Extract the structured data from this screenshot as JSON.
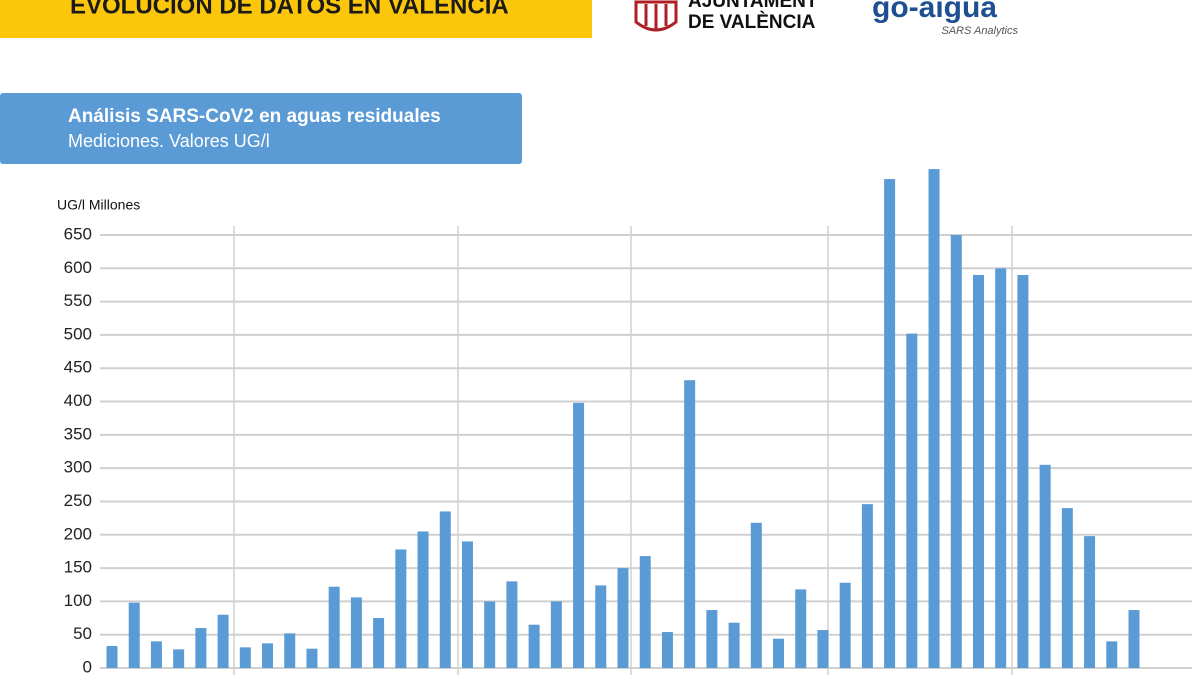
{
  "header": {
    "title": "EVOLUCIÓN DE DATOS EN VALÈNCIA",
    "city_hall": [
      "AJUNTAMENT",
      "DE VALÈNCIA"
    ],
    "brand": "go-aigua",
    "brand_tagline": "SARS Analytics"
  },
  "chart_data": {
    "type": "bar",
    "title": "Análisis SARS-CoV2 en aguas residuales",
    "subtitle": "Mediciones. Valores UG/l",
    "y_label": "UG/l Millones",
    "values": [
      33,
      98,
      40,
      28,
      60,
      80,
      31,
      37,
      52,
      29,
      122,
      106,
      75,
      178,
      205,
      235,
      190,
      100,
      130,
      65,
      100,
      398,
      124,
      150,
      168,
      54,
      432,
      87,
      68,
      218,
      44,
      118,
      57,
      128,
      246,
      734,
      502,
      749,
      650,
      590,
      600,
      590,
      305,
      240,
      198,
      40,
      87
    ],
    "color": "#5b9bd5",
    "ylim": [
      0,
      750
    ],
    "yticks": [
      0,
      50,
      100,
      150,
      200,
      250,
      300,
      350,
      400,
      450,
      500,
      550,
      600,
      650
    ],
    "grid": true
  }
}
